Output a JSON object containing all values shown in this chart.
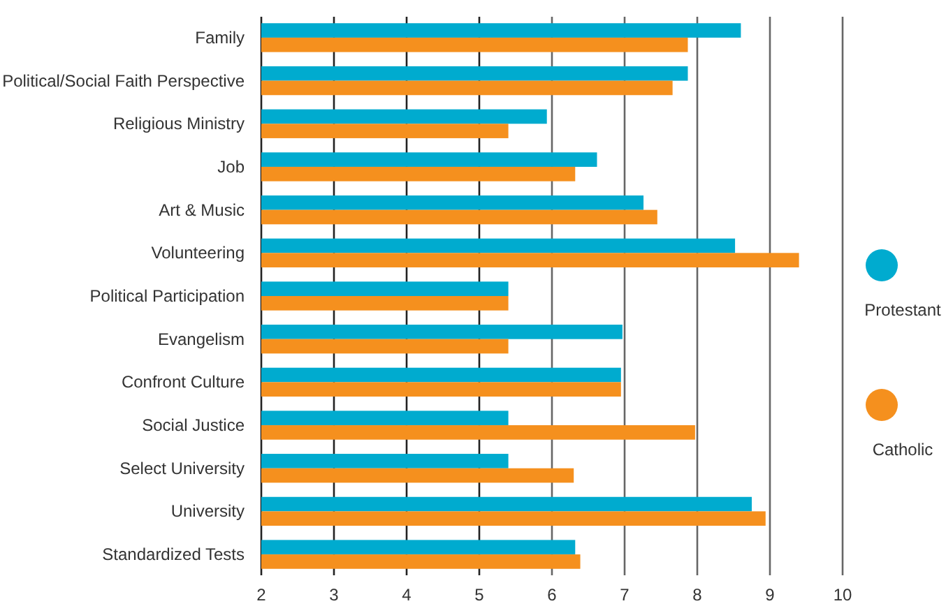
{
  "chart_data": {
    "type": "bar",
    "orientation": "horizontal",
    "categories": [
      "Family",
      "Political/Social Faith Perspective",
      "Religious Ministry",
      "Job",
      "Art & Music",
      "Volunteering",
      "Political Participation",
      "Evangelism",
      "Confront Culture",
      "Social Justice",
      "Select University",
      "University",
      "Standardized Tests"
    ],
    "series": [
      {
        "name": "Protestant",
        "color": "#00abcf",
        "values": [
          8.6,
          7.87,
          5.93,
          6.62,
          7.26,
          8.52,
          5.4,
          6.97,
          6.95,
          5.4,
          5.4,
          8.75,
          6.32
        ]
      },
      {
        "name": "Catholic",
        "color": "#f5901e",
        "values": [
          7.87,
          7.66,
          5.4,
          6.32,
          7.45,
          9.4,
          5.4,
          5.4,
          6.95,
          7.97,
          6.3,
          8.94,
          6.39
        ]
      }
    ],
    "xlim": [
      2,
      10
    ],
    "xticks": [
      2,
      3,
      4,
      5,
      6,
      7,
      8,
      9,
      10
    ],
    "grid": "x",
    "legend": "right"
  }
}
